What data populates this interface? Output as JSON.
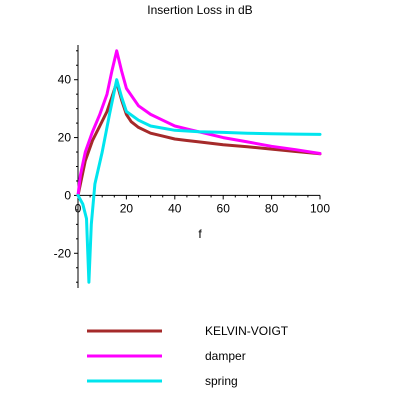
{
  "chart_data": {
    "type": "line",
    "title": "Insertion Loss in dB",
    "xlabel": "f",
    "ylabel": "",
    "xlim": [
      0,
      100
    ],
    "ylim": [
      -32,
      52
    ],
    "x_ticks": [
      0,
      20,
      40,
      60,
      80,
      100
    ],
    "y_ticks": [
      -20,
      0,
      20,
      40
    ],
    "grid": false,
    "legend_position": "bottom",
    "series": [
      {
        "name": "KELVIN-VOIGT",
        "color": "#a52a2a",
        "points": [
          [
            0,
            0
          ],
          [
            3,
            12
          ],
          [
            6,
            19
          ],
          [
            9,
            24
          ],
          [
            12,
            29
          ],
          [
            14,
            34
          ],
          [
            16,
            39
          ],
          [
            18,
            33
          ],
          [
            20,
            28
          ],
          [
            22,
            25.5
          ],
          [
            25,
            23.5
          ],
          [
            30,
            21.5
          ],
          [
            35,
            20.5
          ],
          [
            40,
            19.5
          ],
          [
            45,
            19
          ],
          [
            50,
            18.5
          ],
          [
            60,
            17.5
          ],
          [
            70,
            16.8
          ],
          [
            80,
            16
          ],
          [
            90,
            15.2
          ],
          [
            100,
            14.4
          ]
        ]
      },
      {
        "name": "damper",
        "color": "#ff00ff",
        "points": [
          [
            0,
            0
          ],
          [
            1,
            7
          ],
          [
            3,
            15
          ],
          [
            6,
            22
          ],
          [
            9,
            28
          ],
          [
            12,
            35
          ],
          [
            14,
            43
          ],
          [
            16,
            50
          ],
          [
            18,
            43
          ],
          [
            20,
            37
          ],
          [
            25,
            31
          ],
          [
            30,
            28
          ],
          [
            35,
            26
          ],
          [
            40,
            24
          ],
          [
            45,
            23
          ],
          [
            50,
            22
          ],
          [
            60,
            20
          ],
          [
            70,
            18.5
          ],
          [
            80,
            17
          ],
          [
            90,
            15.8
          ],
          [
            100,
            14.5
          ]
        ]
      },
      {
        "name": "spring",
        "color": "#00e5ee",
        "points": [
          [
            0,
            0
          ],
          [
            2,
            -3
          ],
          [
            3.5,
            -8
          ],
          [
            4.5,
            -30
          ],
          [
            5.5,
            -10
          ],
          [
            7,
            4
          ],
          [
            10,
            15
          ],
          [
            13,
            28
          ],
          [
            16,
            40
          ],
          [
            18,
            34
          ],
          [
            20,
            29
          ],
          [
            25,
            26
          ],
          [
            30,
            24
          ],
          [
            40,
            22.5
          ],
          [
            50,
            22
          ],
          [
            60,
            21.8
          ],
          [
            70,
            21.5
          ],
          [
            80,
            21.3
          ],
          [
            90,
            21.2
          ],
          [
            100,
            21.1
          ]
        ]
      }
    ]
  }
}
